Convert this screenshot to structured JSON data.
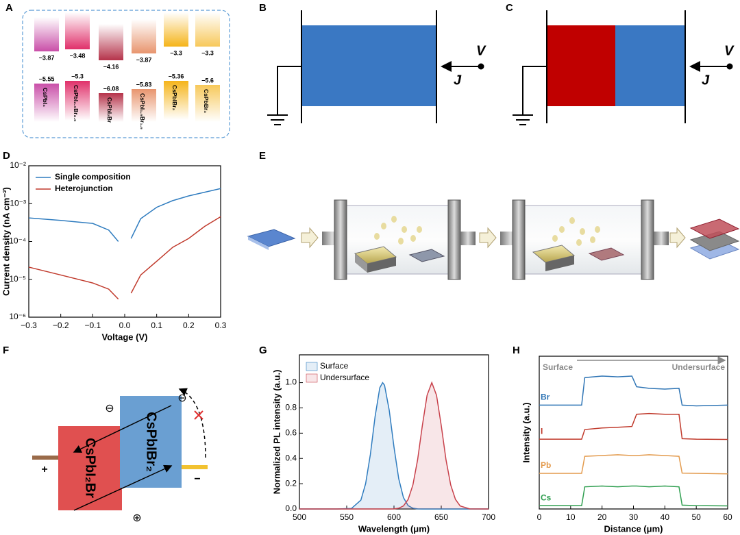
{
  "panel_labels": [
    "A",
    "B",
    "C",
    "D",
    "E",
    "F",
    "G",
    "H"
  ],
  "band_diagram": {
    "columns": [
      {
        "name": "CsPbI₃",
        "cbm": "−3.87",
        "vbm": "−5.55",
        "color": "#c94fa8"
      },
      {
        "name": "CsPbI₂.₅Br₀.₅",
        "cbm": "−3.48",
        "vbm": "−5.3",
        "color": "#e0306a"
      },
      {
        "name": "CsPbI₂Br",
        "cbm": "−4.16",
        "vbm": "−6.08",
        "color": "#b5334a"
      },
      {
        "name": "CsPbI₁.₅Br₁.₅",
        "cbm": "−3.87",
        "vbm": "−5.83",
        "color": "#e8956e"
      },
      {
        "name": "CsPbIBr₂",
        "cbm": "−3.3",
        "vbm": "−5.36",
        "color": "#f5b41a"
      },
      {
        "name": "CsPbBr₃",
        "cbm": "−3.3",
        "vbm": "−5.6",
        "color": "#f7c85a"
      }
    ]
  },
  "circuit_b": {
    "v": "V",
    "j": "J"
  },
  "circuit_c": {
    "v": "V",
    "j": "J"
  },
  "device_f": {
    "layer1": "CsPbI₂Br",
    "layer2": "CsPbIBr₂",
    "plus": "+",
    "minus": "−",
    "symbols": [
      "⊖",
      "⊖",
      "⊕"
    ]
  },
  "chart_data": [
    {
      "type": "line",
      "xlabel": "Voltage (V)",
      "ylabel": "Current density (nA cm⁻²)",
      "log_y": true,
      "x": [
        -0.3,
        -0.2,
        -0.1,
        -0.05,
        -0.02,
        0,
        0.02,
        0.05,
        0.1,
        0.15,
        0.2,
        0.25,
        0.3
      ],
      "series": [
        {
          "name": "Single composition",
          "color": "#2f7cbf",
          "values": [
            0.00042,
            0.00036,
            0.0003,
            0.0002,
            0.0001,
            null,
            0.00012,
            0.0004,
            0.0008,
            0.0012,
            0.0016,
            0.002,
            0.0025
          ]
        },
        {
          "name": "Heterojunction",
          "color": "#c0392b",
          "values": [
            2.1e-05,
            1.3e-05,
            8e-06,
            5.5e-06,
            3e-06,
            null,
            4.3e-06,
            1.3e-05,
            3e-05,
            7e-05,
            0.00012,
            0.00025,
            0.00045
          ]
        }
      ],
      "xlim": [
        -0.3,
        0.3
      ],
      "xticks": [
        {
          "value": -0.3,
          "label": "−0.3"
        },
        {
          "value": -0.2,
          "label": "−0.2"
        },
        {
          "value": -0.1,
          "label": "−0.1"
        },
        {
          "value": 0,
          "label": "0.0"
        },
        0.1,
        0.2,
        0.3
      ],
      "ylim": [
        1e-06,
        0.01
      ],
      "yticks": [
        {
          "value": 1e-06,
          "label": "10⁻⁶"
        },
        {
          "value": 1e-05,
          "label": "10⁻⁵"
        },
        {
          "value": 0.0001,
          "label": "10⁻⁴"
        },
        {
          "value": 0.001,
          "label": "10⁻³"
        },
        {
          "value": 0.01,
          "label": "10⁻²"
        }
      ],
      "legend": "upper left"
    },
    {
      "type": "line",
      "xlabel": "Wavelength (μm)",
      "ylabel": "Normalized PL intensity (a.u.)",
      "fill": true,
      "x": [
        500,
        540,
        555,
        565,
        570,
        575,
        580,
        585,
        588,
        590,
        595,
        600,
        605,
        610,
        615,
        620,
        625,
        630,
        635,
        640,
        645,
        650,
        655,
        660,
        665,
        670,
        680,
        700
      ],
      "series": [
        {
          "name": "Surface",
          "color": "#2f7cbf",
          "values": [
            0,
            0,
            0.004,
            0.07,
            0.2,
            0.43,
            0.73,
            0.96,
            1.0,
            0.98,
            0.78,
            0.49,
            0.24,
            0.09,
            0.026,
            0.006,
            0.001,
            0,
            0,
            0,
            0,
            0,
            0,
            0,
            0,
            0,
            0,
            0
          ]
        },
        {
          "name": "Undersurface",
          "color": "#c8414b",
          "values": [
            0,
            0,
            0,
            0,
            0,
            0,
            0,
            0,
            0,
            0,
            0,
            0.001,
            0.006,
            0.024,
            0.076,
            0.19,
            0.39,
            0.66,
            0.9,
            1.0,
            0.9,
            0.66,
            0.39,
            0.19,
            0.076,
            0.024,
            0.001,
            0
          ]
        }
      ],
      "xlim": [
        500,
        700
      ],
      "xticks": [
        500,
        550,
        600,
        650,
        700
      ],
      "ylim": [
        0,
        1.22
      ],
      "yticks": [
        {
          "value": 0,
          "label": "0.0"
        },
        0.2,
        0.4,
        0.6,
        0.8,
        {
          "value": 1,
          "label": "1.0"
        }
      ],
      "legend": "upper left"
    },
    {
      "type": "line",
      "xlabel": "Distance (μm)",
      "ylabel": "Intensity (a.u.)",
      "annotations": [
        "Surface",
        "Undersurface"
      ],
      "x": [
        0,
        13.5,
        14.5,
        20,
        25,
        29.5,
        31,
        35,
        40,
        44.5,
        45.5,
        50,
        60
      ],
      "series": [
        {
          "name": "Br",
          "color": "#2f75b5",
          "values": [
            6.8,
            6.8,
            8.6,
            8.7,
            8.65,
            8.7,
            8.0,
            7.9,
            7.85,
            7.9,
            6.8,
            6.75,
            6.8
          ]
        },
        {
          "name": "I",
          "color": "#c0392b",
          "values": [
            4.57,
            4.57,
            5.2,
            5.3,
            5.35,
            5.4,
            6.2,
            6.25,
            6.2,
            6.2,
            4.6,
            4.57,
            4.55
          ]
        },
        {
          "name": "Pb",
          "color": "#e39a4c",
          "values": [
            2.33,
            2.33,
            3.45,
            3.5,
            3.55,
            3.5,
            3.5,
            3.55,
            3.5,
            3.45,
            2.35,
            2.33,
            2.3
          ]
        },
        {
          "name": "Cs",
          "color": "#2e9e4f",
          "values": [
            0.22,
            0.22,
            1.45,
            1.5,
            1.45,
            1.5,
            1.5,
            1.45,
            1.5,
            1.45,
            0.25,
            0.22,
            0.2
          ]
        }
      ],
      "xlim": [
        0,
        60
      ],
      "xticks": [
        0,
        10,
        20,
        30,
        40,
        50,
        60
      ],
      "ylim": [
        0,
        10
      ],
      "legend": "inline"
    }
  ]
}
